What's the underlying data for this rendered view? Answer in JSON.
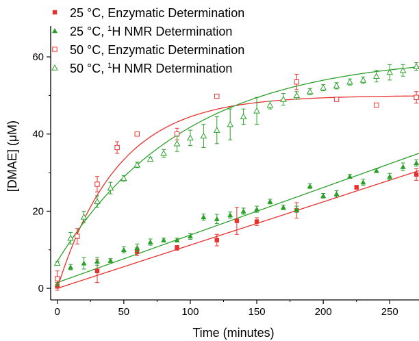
{
  "chart_data": {
    "type": "scatter",
    "title": "",
    "xlabel": "Time (minutes)",
    "ylabel": "[DMAE] (μM)",
    "xlim": [
      -5,
      272
    ],
    "ylim": [
      -3,
      68
    ],
    "x_ticks": [
      0,
      50,
      100,
      150,
      200,
      250
    ],
    "y_ticks": [
      0,
      20,
      40,
      60
    ],
    "grid": false,
    "legend_position": "top-left",
    "series": [
      {
        "name": "25 °C, Enzymatic Determination",
        "marker": "filled-square",
        "color": "#e8302c",
        "points": [
          {
            "x": 0,
            "y": 0.5,
            "err": 1.0
          },
          {
            "x": 30,
            "y": 4.5,
            "err": 3.0
          },
          {
            "x": 60,
            "y": 9.5,
            "err": 1.0
          },
          {
            "x": 90,
            "y": 10.5,
            "err": 0.6
          },
          {
            "x": 120,
            "y": 12.5,
            "err": 1.5
          },
          {
            "x": 135,
            "y": 17.5,
            "err": 3.5
          },
          {
            "x": 150,
            "y": 17.3,
            "err": 1.0
          },
          {
            "x": 180,
            "y": 20.2,
            "err": 2.0
          },
          {
            "x": 225,
            "y": 26.2,
            "err": 0.5
          },
          {
            "x": 270,
            "y": 29.5,
            "err": 1.5
          }
        ],
        "fit": {
          "type": "linear",
          "x0": 0,
          "y0": 0,
          "x1": 272,
          "y1": 30.5
        }
      },
      {
        "name": "25 °C, ¹H NMR Determination",
        "label_parts": {
          "pre": "25 °C, ",
          "sup": "1",
          "post": "H NMR Determination"
        },
        "marker": "filled-triangle",
        "color": "#2aa02a",
        "points": [
          {
            "x": 0,
            "y": 1.0,
            "err": 0.5
          },
          {
            "x": 10,
            "y": 5.5,
            "err": 0.7
          },
          {
            "x": 20,
            "y": 6.5,
            "err": 1.5
          },
          {
            "x": 30,
            "y": 7.0,
            "err": 1.0
          },
          {
            "x": 40,
            "y": 7.2,
            "err": 0.5
          },
          {
            "x": 50,
            "y": 10.0,
            "err": 0.8
          },
          {
            "x": 60,
            "y": 10.5,
            "err": 1.0
          },
          {
            "x": 70,
            "y": 12.0,
            "err": 0.8
          },
          {
            "x": 80,
            "y": 12.5,
            "err": 0.5
          },
          {
            "x": 90,
            "y": 12.5,
            "err": 0.5
          },
          {
            "x": 100,
            "y": 13.5,
            "err": 0.8
          },
          {
            "x": 110,
            "y": 18.5,
            "err": 0.8
          },
          {
            "x": 120,
            "y": 18.0,
            "err": 1.2
          },
          {
            "x": 130,
            "y": 19.0,
            "err": 0.8
          },
          {
            "x": 140,
            "y": 20.0,
            "err": 0.8
          },
          {
            "x": 150,
            "y": 20.5,
            "err": 0.8
          },
          {
            "x": 160,
            "y": 22.5,
            "err": 0.6
          },
          {
            "x": 170,
            "y": 21.0,
            "err": 0.6
          },
          {
            "x": 180,
            "y": 20.5,
            "err": 0.8
          },
          {
            "x": 190,
            "y": 26.5,
            "err": 0.6
          },
          {
            "x": 200,
            "y": 24.0,
            "err": 0.6
          },
          {
            "x": 210,
            "y": 24.5,
            "err": 0.8
          },
          {
            "x": 220,
            "y": 29.0,
            "err": 0.5
          },
          {
            "x": 230,
            "y": 27.5,
            "err": 0.8
          },
          {
            "x": 240,
            "y": 30.5,
            "err": 0.5
          },
          {
            "x": 250,
            "y": 29.0,
            "err": 0.8
          },
          {
            "x": 260,
            "y": 31.5,
            "err": 1.0
          },
          {
            "x": 270,
            "y": 32.5,
            "err": 0.8
          }
        ],
        "fit": {
          "type": "linear",
          "x0": 0,
          "y0": 1.5,
          "x1": 272,
          "y1": 35.0
        }
      },
      {
        "name": "50 °C, Enzymatic Determination",
        "marker": "open-square",
        "color": "#e8302c",
        "points": [
          {
            "x": 0,
            "y": 2.5,
            "err": 2.0
          },
          {
            "x": 15,
            "y": 13.5,
            "err": 2.0
          },
          {
            "x": 30,
            "y": 27.0,
            "err": 2.0
          },
          {
            "x": 45,
            "y": 36.5,
            "err": 1.5
          },
          {
            "x": 60,
            "y": 40.0,
            "err": 0.3
          },
          {
            "x": 90,
            "y": 40.0,
            "err": 1.5
          },
          {
            "x": 120,
            "y": 49.8,
            "err": 0.3
          },
          {
            "x": 180,
            "y": 53.5,
            "err": 2.0
          },
          {
            "x": 210,
            "y": 49.0,
            "err": 0.3
          },
          {
            "x": 240,
            "y": 47.5,
            "err": 0.5
          },
          {
            "x": 270,
            "y": 49.5,
            "err": 1.5
          }
        ],
        "fit": {
          "type": "exponential",
          "plateau": 50.0,
          "y0": 0.0,
          "k": 0.022,
          "xmin": 0,
          "xmax": 272
        }
      },
      {
        "name": "50 °C, ¹H NMR Determination",
        "label_parts": {
          "pre": "50 °C, ",
          "sup": "1",
          "post": "H NMR Determination"
        },
        "marker": "open-triangle",
        "color": "#2aa02a",
        "points": [
          {
            "x": 0,
            "y": 6.5,
            "err": 0.5
          },
          {
            "x": 10,
            "y": 13.0,
            "err": 1.5
          },
          {
            "x": 20,
            "y": 18.5,
            "err": 1.5
          },
          {
            "x": 30,
            "y": 22.5,
            "err": 1.5
          },
          {
            "x": 40,
            "y": 26.0,
            "err": 1.5
          },
          {
            "x": 50,
            "y": 28.5,
            "err": 0.7
          },
          {
            "x": 60,
            "y": 32.0,
            "err": 0.7
          },
          {
            "x": 70,
            "y": 33.5,
            "err": 0.5
          },
          {
            "x": 80,
            "y": 35.0,
            "err": 1.0
          },
          {
            "x": 90,
            "y": 37.5,
            "err": 2.0
          },
          {
            "x": 100,
            "y": 39.0,
            "err": 2.0
          },
          {
            "x": 110,
            "y": 39.5,
            "err": 3.0
          },
          {
            "x": 120,
            "y": 41.0,
            "err": 3.5
          },
          {
            "x": 130,
            "y": 42.5,
            "err": 4.0
          },
          {
            "x": 140,
            "y": 44.5,
            "err": 2.0
          },
          {
            "x": 150,
            "y": 46.0,
            "err": 3.5
          },
          {
            "x": 160,
            "y": 47.5,
            "err": 1.0
          },
          {
            "x": 170,
            "y": 49.0,
            "err": 1.5
          },
          {
            "x": 180,
            "y": 50.0,
            "err": 1.0
          },
          {
            "x": 190,
            "y": 51.0,
            "err": 0.8
          },
          {
            "x": 200,
            "y": 52.0,
            "err": 0.8
          },
          {
            "x": 210,
            "y": 52.5,
            "err": 0.8
          },
          {
            "x": 220,
            "y": 53.5,
            "err": 0.8
          },
          {
            "x": 230,
            "y": 54.0,
            "err": 0.8
          },
          {
            "x": 240,
            "y": 55.0,
            "err": 1.5
          },
          {
            "x": 250,
            "y": 56.0,
            "err": 2.0
          },
          {
            "x": 260,
            "y": 56.5,
            "err": 1.5
          },
          {
            "x": 270,
            "y": 57.5,
            "err": 1.0
          }
        ],
        "fit": {
          "type": "exponential",
          "plateau": 60.5,
          "y0": 7.0,
          "k": 0.0105,
          "xmin": 0,
          "xmax": 272
        }
      }
    ]
  }
}
